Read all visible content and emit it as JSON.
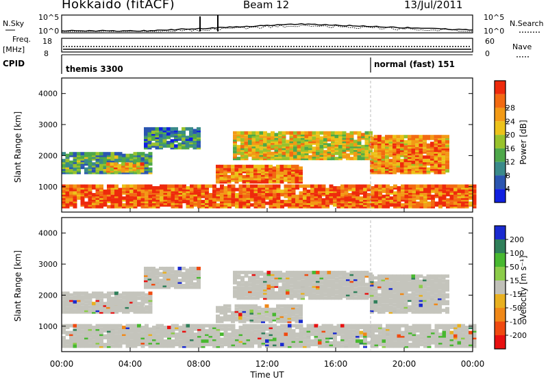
{
  "header": {
    "title": "Hokkaido (fitACF)",
    "beam": "Beam 12",
    "date": "13/Jul/2011"
  },
  "top_panels": {
    "nsky_label": "N.Sky",
    "nsky_ticks": [
      "10^5",
      "10^0"
    ],
    "nsearch_label": "N.Search",
    "nsearch_ticks": [
      "10^5",
      "10^0"
    ],
    "freq_label_line1": "Freq.",
    "freq_label_line2": "[MHz]",
    "freq_ticks": [
      "18",
      "8"
    ],
    "nave_label": "Nave",
    "nave_ticks": [
      "60",
      "0"
    ],
    "cpid_label": "CPID",
    "cpid_segments": [
      {
        "name": "themis 3300",
        "start_hour": 0
      },
      {
        "name": "normal (fast) 151",
        "start_hour": 18
      }
    ]
  },
  "chart_data": [
    {
      "type": "heatmap",
      "title": "",
      "ylabel": "Slant Range [km]",
      "xlabel": "",
      "x_range_hours": [
        0,
        24
      ],
      "ylim": [
        180,
        4500
      ],
      "y_ticks": [
        "1000",
        "2000",
        "3000",
        "4000"
      ],
      "colorbar_label": "Power [dB]",
      "colorbar_ticks": [
        "4",
        "8",
        "12",
        "16",
        "20",
        "24",
        "28"
      ],
      "colorbar_colors": [
        "#1020e0",
        "#2a55b0",
        "#3a8a8a",
        "#4ea84a",
        "#98c22c",
        "#ecc21a",
        "#f29a16",
        "#f26a12",
        "#ee2a0c"
      ],
      "bands": [
        {
          "hours": [
            0,
            24
          ],
          "range_km": [
            300,
            1000
          ],
          "level": 0.85
        },
        {
          "hours": [
            0,
            5.2
          ],
          "range_km": [
            1400,
            2050
          ],
          "level": 0.35
        },
        {
          "hours": [
            2.6,
            4.8
          ],
          "range_km": [
            1450,
            1700
          ],
          "level": 0.7
        },
        {
          "hours": [
            4.8,
            8
          ],
          "range_km": [
            2200,
            2850
          ],
          "level": 0.3
        },
        {
          "hours": [
            10,
            18
          ],
          "range_km": [
            1850,
            2700
          ],
          "level": 0.6
        },
        {
          "hours": [
            18,
            22.5
          ],
          "range_km": [
            1400,
            2600
          ],
          "level": 0.75
        },
        {
          "hours": [
            9,
            14
          ],
          "range_km": [
            1100,
            1600
          ],
          "level": 0.8
        }
      ]
    },
    {
      "type": "heatmap",
      "title": "",
      "ylabel": "Slant Range [km]",
      "xlabel": "Time UT",
      "x_range_hours": [
        0,
        24
      ],
      "ylim": [
        180,
        4500
      ],
      "y_ticks": [
        "1000",
        "2000",
        "3000",
        "4000"
      ],
      "x_ticks": [
        "00:00",
        "04:00",
        "08:00",
        "12:00",
        "16:00",
        "20:00",
        "00:00"
      ],
      "colorbar_label": "Velocity [m s⁻¹]",
      "colorbar_ticks": [
        "200",
        "100",
        "50",
        "15",
        "-15",
        "-50",
        "-100",
        "-200"
      ],
      "colorbar_colors": [
        "#1a2ad0",
        "#2f7f5a",
        "#48b830",
        "#8ccc4a",
        "#c0c0b8",
        "#e8b020",
        "#f08818",
        "#f04a10",
        "#e81010"
      ],
      "dominant_color": "#c4c4bc"
    }
  ]
}
